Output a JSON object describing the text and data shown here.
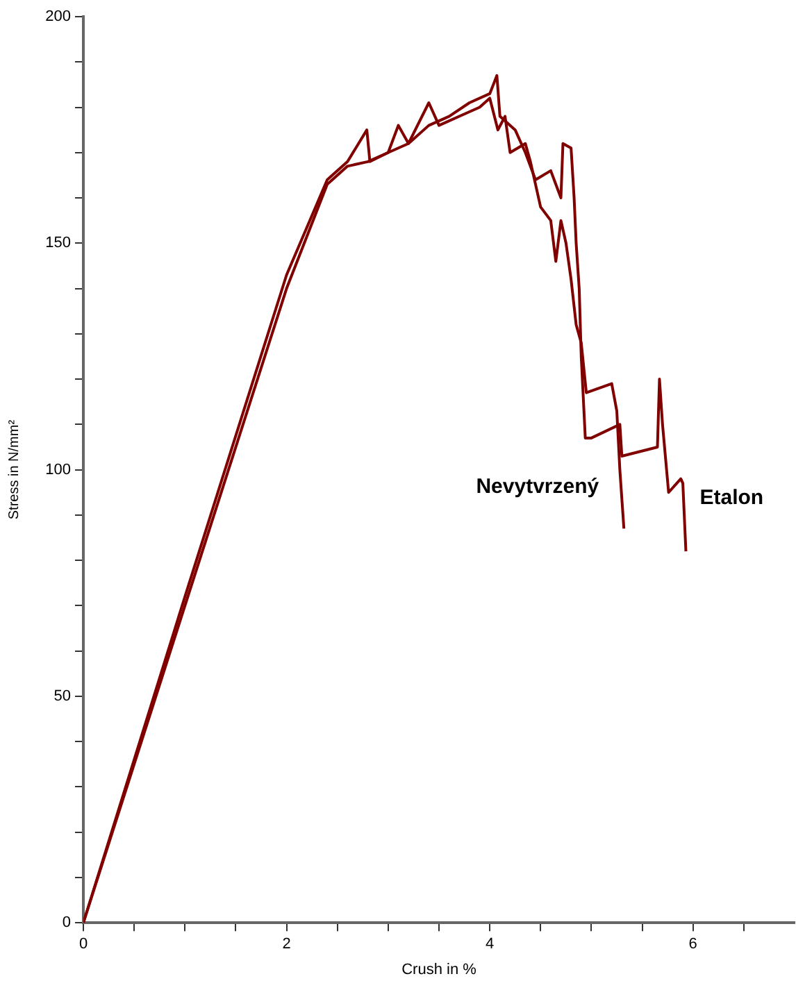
{
  "chart_data": {
    "type": "line",
    "xlabel": "Crush in %",
    "ylabel": "Stress in N/mm²",
    "xlim": [
      0,
      7
    ],
    "ylim": [
      0,
      200
    ],
    "xticks": [
      0,
      {
        "value": 0.5,
        "label": null
      },
      {
        "value": 1,
        "label": null
      },
      {
        "value": 1.5,
        "label": null
      },
      2,
      {
        "value": 2.5,
        "label": null
      },
      {
        "value": 3,
        "label": null
      },
      {
        "value": 3.5,
        "label": null
      },
      4,
      {
        "value": 4.5,
        "label": null
      },
      {
        "value": 5,
        "label": null
      },
      {
        "value": 5.5,
        "label": null
      },
      6,
      {
        "value": 6.5,
        "label": null
      }
    ],
    "yticks": [
      0,
      {
        "value": 10,
        "label": null
      },
      {
        "value": 20,
        "label": null
      },
      {
        "value": 30,
        "label": null
      },
      {
        "value": 40,
        "label": null
      },
      50,
      {
        "value": 60,
        "label": null
      },
      {
        "value": 70,
        "label": null
      },
      {
        "value": 80,
        "label": null
      },
      {
        "value": 90,
        "label": null
      },
      100,
      {
        "value": 110,
        "label": null
      },
      {
        "value": 120,
        "label": null
      },
      {
        "value": 130,
        "label": null
      },
      {
        "value": 140,
        "label": null
      },
      150,
      {
        "value": 160,
        "label": null
      },
      {
        "value": 170,
        "label": null
      },
      {
        "value": 180,
        "label": null
      },
      {
        "value": 190,
        "label": null
      },
      200
    ],
    "grid": false,
    "legend": false,
    "marker": "none",
    "line_style": "solid",
    "series": [
      {
        "name": "Nevytvrzený",
        "color": "#800000",
        "x": [
          0,
          1,
          2,
          2.4,
          2.6,
          2.79,
          2.82,
          3.0,
          3.1,
          3.2,
          3.4,
          3.5,
          3.8,
          3.9,
          4.0,
          4.08,
          4.15,
          4.2,
          4.35,
          4.4,
          4.5,
          4.6,
          4.65,
          4.7,
          4.75,
          4.8,
          4.85,
          4.9,
          4.95,
          5.2,
          5.25,
          5.28,
          5.32
        ],
        "values": [
          0,
          72,
          143,
          164,
          168,
          175,
          168,
          170,
          176,
          172,
          181,
          176,
          179,
          180,
          182,
          175,
          178,
          170,
          172,
          168,
          158,
          155,
          146,
          155,
          150,
          142,
          132,
          128,
          117,
          119,
          113,
          100,
          87
        ]
      },
      {
        "name": "Etalon",
        "color": "#800000",
        "x": [
          0,
          1,
          2,
          2.4,
          2.6,
          2.8,
          3.0,
          3.2,
          3.4,
          3.6,
          3.8,
          4.0,
          4.07,
          4.1,
          4.25,
          4.35,
          4.45,
          4.6,
          4.7,
          4.72,
          4.8,
          4.83,
          4.85,
          4.88,
          4.9,
          4.94,
          5.0,
          5.28,
          5.3,
          5.65,
          5.67,
          5.7,
          5.76,
          5.88,
          5.9,
          5.93
        ],
        "values": [
          0,
          70,
          140,
          163,
          167,
          168,
          170,
          172,
          176,
          178,
          181,
          183,
          187,
          178,
          175,
          170,
          164,
          166,
          160,
          172,
          171,
          160,
          150,
          140,
          125,
          107,
          107,
          110,
          103,
          105,
          120,
          110,
          95,
          98,
          97,
          82
        ]
      }
    ]
  }
}
